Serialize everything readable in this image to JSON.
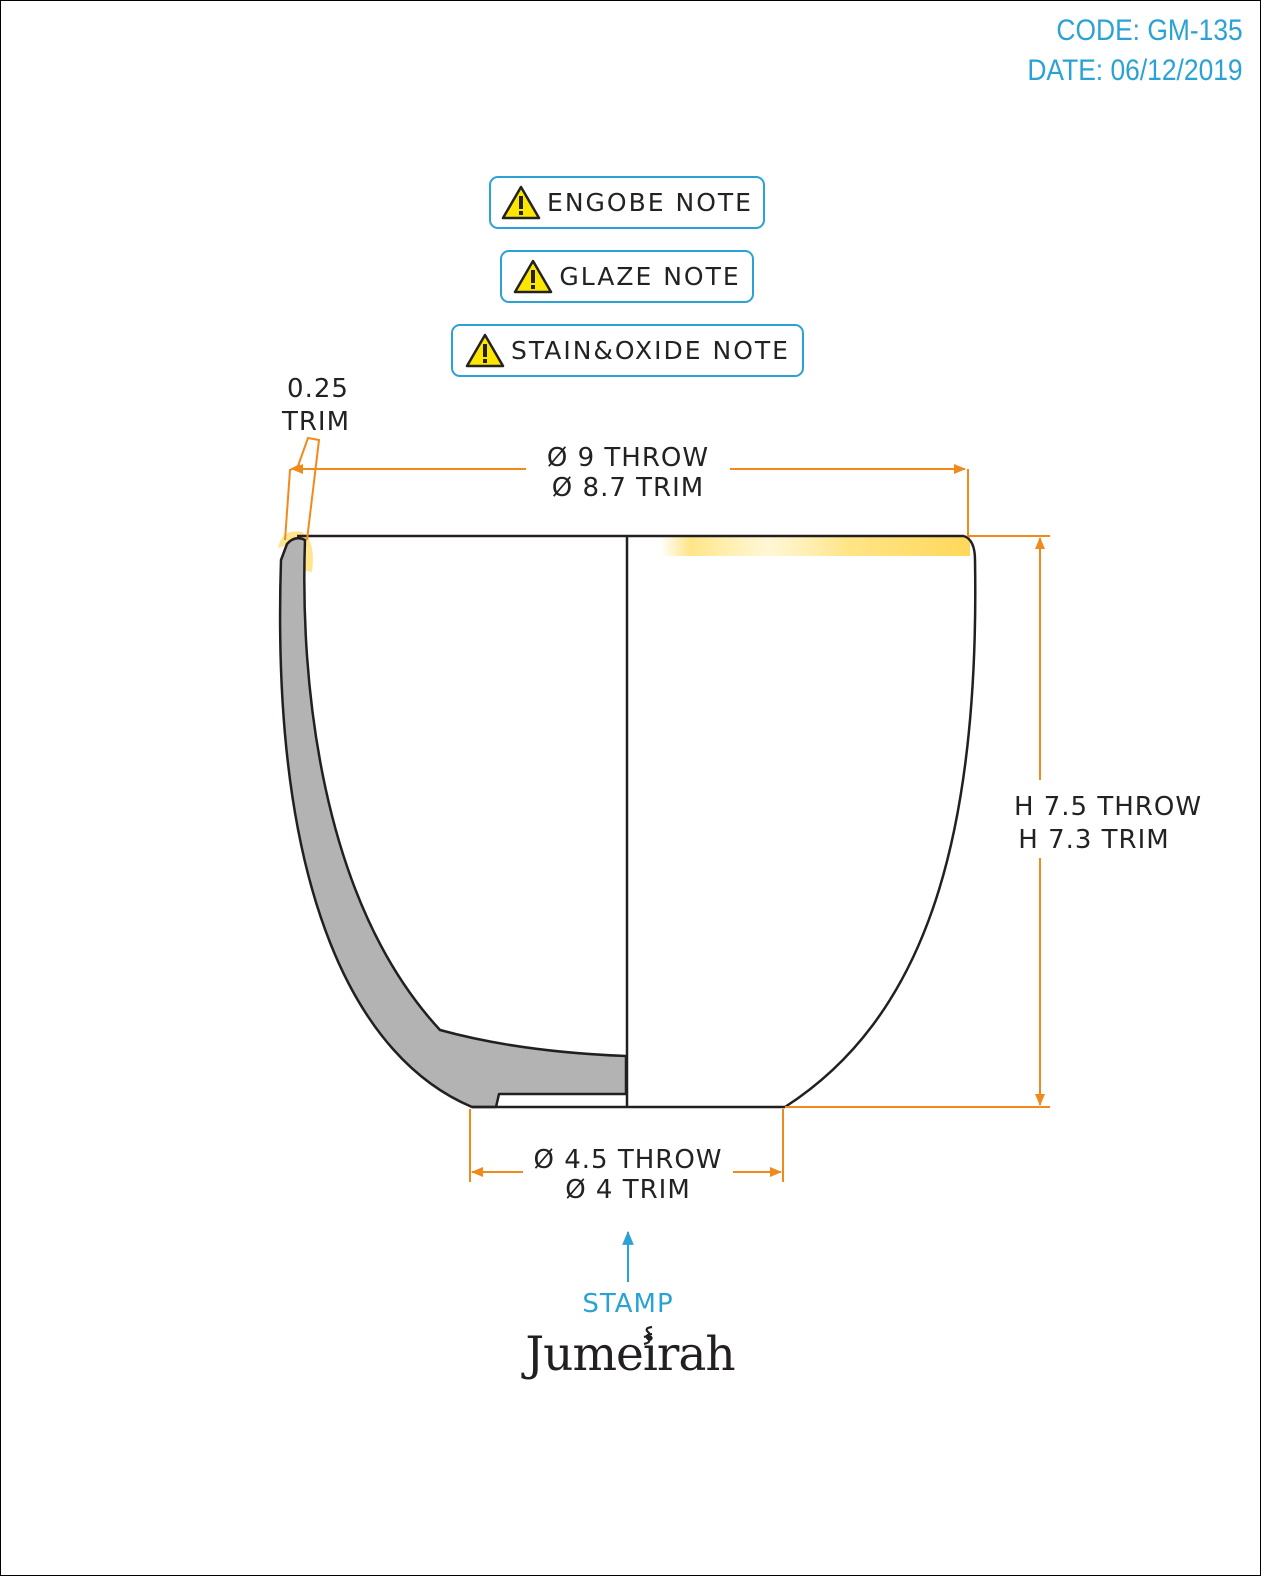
{
  "header": {
    "code_label": "CODE:",
    "code_value": "GM-135",
    "date_label": "DATE:",
    "date_value": "06/12/2019"
  },
  "notes": [
    {
      "label": "ENGOBE NOTE",
      "icon": "warning-icon"
    },
    {
      "label": "GLAZE NOTE",
      "icon": "warning-icon"
    },
    {
      "label": "STAIN&OXIDE NOTE",
      "icon": "warning-icon"
    }
  ],
  "dimensions": {
    "trim_lip": [
      "0.25",
      "TRIM"
    ],
    "top_diameter": [
      "Ø 9 THROW",
      "Ø 8.7 TRIM"
    ],
    "height": [
      "H 7.5 THROW",
      "H 7.3 TRIM"
    ],
    "base_diameter": [
      "Ø 4.5 THROW",
      "Ø 4 TRIM"
    ]
  },
  "stamp_label": "STAMP",
  "logo_text": "Jumeirah",
  "colors": {
    "accent_blue": "#2aa2d6",
    "dimension_orange": "#f08a1c",
    "wall_section": "#b3b3b3",
    "outline": "#231f20",
    "rim_highlight": "#ffe27a",
    "warning_yellow": "#ffe600"
  }
}
